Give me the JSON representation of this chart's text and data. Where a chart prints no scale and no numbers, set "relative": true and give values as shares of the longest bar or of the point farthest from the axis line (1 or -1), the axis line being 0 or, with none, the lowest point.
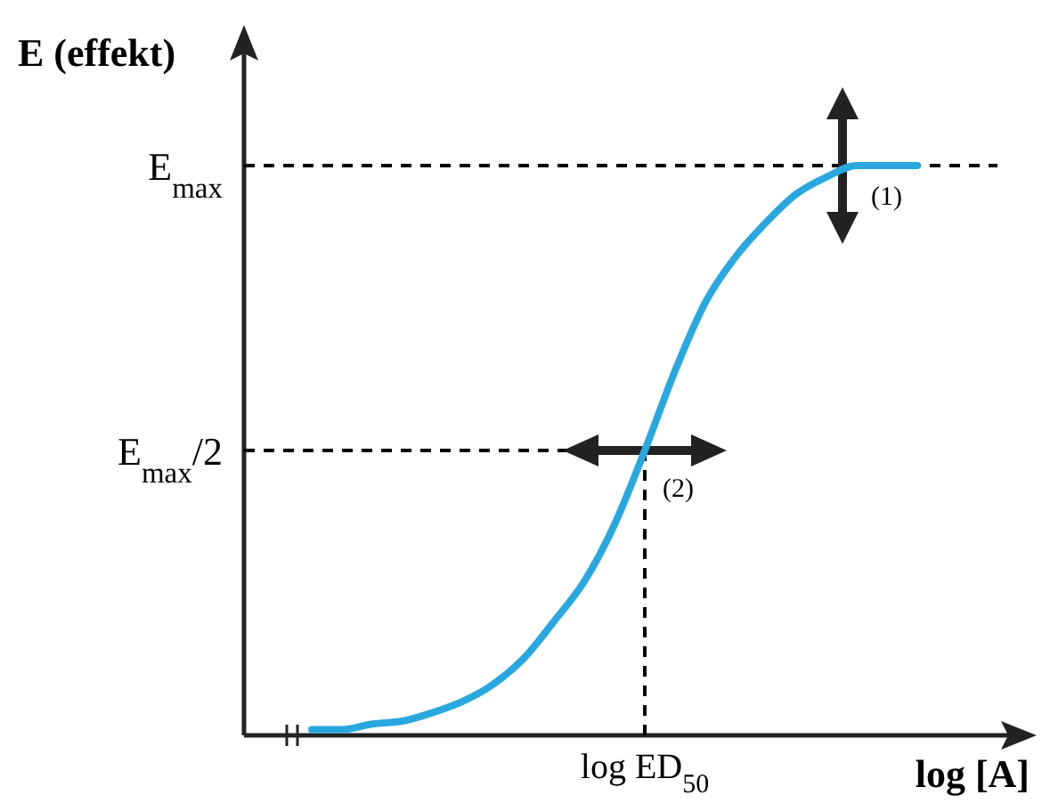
{
  "chart_data": {
    "type": "line",
    "xlabel": "log [A]",
    "ylabel": "E (effekt)",
    "categories": [
      null,
      null,
      null,
      null,
      null,
      null,
      null,
      null,
      null,
      null,
      null,
      null,
      null,
      null,
      null,
      null,
      null,
      null,
      null,
      null,
      null
    ],
    "series": [
      {
        "color": "#29a8e0",
        "values": [
          0.01,
          0.01,
          0.02,
          0.025,
          0.04,
          0.06,
          0.09,
          0.135,
          0.2,
          0.27,
          0.37,
          0.5,
          0.64,
          0.76,
          0.84,
          0.9,
          0.95,
          0.98,
          1,
          1,
          1
        ]
      }
    ],
    "relative": true,
    "ref_lines": [
      {
        "axis": "y",
        "value": 1,
        "label": "E$_{max}$",
        "line_style": "dashed",
        "color": "#000000"
      },
      {
        "axis": "y",
        "value": 0.5,
        "label": "E$_{max}$/2",
        "line_style": "dashed",
        "color": "#000000"
      }
    ],
    "annotations": [
      "(1)",
      "(2)",
      "log ED$_{50}$"
    ],
    "marker": "none",
    "line_style": "solid"
  }
}
